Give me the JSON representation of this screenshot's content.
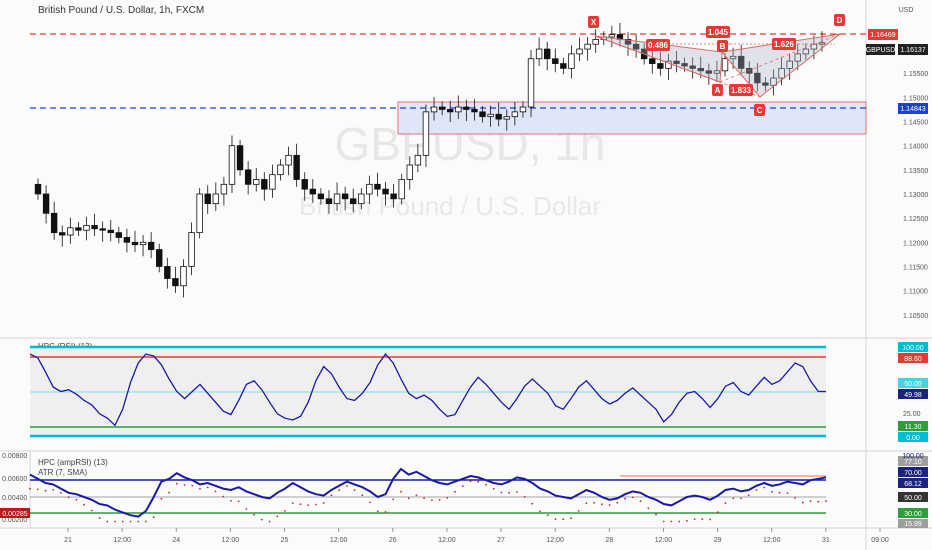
{
  "header": {
    "title": "British Pound / U.S. Dollar, 1h, FXCM",
    "currency": "USD"
  },
  "watermark": {
    "symbol": "GBPUSD, 1h",
    "name": "British Pound / U.S. Dollar"
  },
  "price_axis": {
    "ticks": [
      "1.16000",
      "1.15500",
      "1.15000",
      "1.14500",
      "1.14000",
      "1.13500",
      "1.13000",
      "1.12500",
      "1.12000",
      "1.11500",
      "1.11000",
      "1.10500"
    ],
    "tags": [
      {
        "label": "1.16469",
        "color": "#e53935",
        "price": 1.16469
      },
      {
        "label": "GBPUSD",
        "color": "#222222",
        "price": 1.16137
      },
      {
        "label": "1.16137",
        "color": "#222222",
        "price": 1.16137
      },
      {
        "label": "1.14843",
        "color": "#1e40d6",
        "price": 1.14843
      }
    ]
  },
  "rsi_pane": {
    "label": "HPC (RSI) (13)",
    "ticks": [
      "25.00"
    ],
    "tags": [
      {
        "label": "100.00",
        "color": "#00bcd4"
      },
      {
        "label": "88.60",
        "color": "#e53935"
      },
      {
        "label": "50.00",
        "color": "#4dd0e1"
      },
      {
        "label": "49.98",
        "color": "#1a237e"
      },
      {
        "label": "11.30",
        "color": "#2e9e3a"
      },
      {
        "label": "0.00",
        "color": "#00bcd4"
      }
    ],
    "series": [
      92,
      88,
      72,
      55,
      50,
      52,
      47,
      40,
      35,
      25,
      20,
      12,
      30,
      60,
      82,
      92,
      90,
      80,
      64,
      50,
      42,
      50,
      58,
      48,
      38,
      28,
      24,
      40,
      58,
      62,
      52,
      38,
      25,
      20,
      18,
      22,
      38,
      62,
      78,
      70,
      55,
      42,
      40,
      48,
      60,
      80,
      92,
      82,
      64,
      48,
      42,
      46,
      40,
      30,
      22,
      24,
      40,
      55,
      66,
      58,
      48,
      38,
      30,
      42,
      56,
      64,
      56,
      48,
      34,
      30,
      42,
      55,
      62,
      52,
      42,
      36,
      40,
      48,
      54,
      46,
      38,
      30,
      16,
      24,
      38,
      48,
      50,
      42,
      32,
      42,
      56,
      60,
      50,
      46,
      56,
      66,
      58,
      62,
      72,
      82,
      78,
      62,
      50,
      49.98
    ]
  },
  "amp_pane": {
    "label1": "HPC (ampRSI) (13)",
    "label2": "ATR (7, SMA)",
    "left_ticks": [
      "0.00800",
      "0.00600",
      "0.00400",
      "0.00200"
    ],
    "left_tag": {
      "label": "0.00285",
      "color": "#b71c1c"
    },
    "tags": [
      {
        "label": "77.10",
        "color": "#9e9e9e"
      },
      {
        "label": "100.00",
        "color": "#1a237e"
      },
      {
        "label": "70.00",
        "color": "#1a237e"
      },
      {
        "label": "68.12",
        "color": "#1a237e"
      },
      {
        "label": "50.00",
        "color": "#333333"
      },
      {
        "label": "30.00",
        "color": "#2e9e3a"
      },
      {
        "label": "15.99",
        "color": "#9e9e9e"
      }
    ],
    "series": [
      72,
      66,
      60,
      58,
      52,
      46,
      44,
      40,
      36,
      30,
      28,
      22,
      18,
      14,
      12,
      20,
      40,
      62,
      66,
      74,
      68,
      64,
      58,
      60,
      56,
      52,
      50,
      54,
      48,
      44,
      40,
      38,
      46,
      52,
      60,
      54,
      48,
      44,
      42,
      50,
      56,
      62,
      58,
      54,
      48,
      40,
      44,
      66,
      80,
      72,
      76,
      70,
      64,
      60,
      58,
      62,
      66,
      70,
      68,
      64,
      60,
      58,
      62,
      68,
      66,
      60,
      52,
      48,
      42,
      40,
      38,
      44,
      50,
      46,
      40,
      36,
      38,
      44,
      48,
      46,
      40,
      36,
      30,
      28,
      34,
      40,
      42,
      40,
      36,
      42,
      50,
      52,
      48,
      50,
      56,
      60,
      56,
      58,
      62,
      60,
      58,
      64,
      66,
      68.12
    ]
  },
  "time_axis": {
    "labels": [
      "21",
      "12:00",
      "24",
      "12:00",
      "25",
      "12:00",
      "26",
      "12:00",
      "27",
      "12:00",
      "28",
      "12:00",
      "29",
      "12:00",
      "31",
      "09:00"
    ]
  },
  "pattern": {
    "points": [
      {
        "label": "X"
      },
      {
        "label": "A"
      },
      {
        "label": "B"
      },
      {
        "label": "C"
      },
      {
        "label": "D"
      }
    ],
    "ratios": [
      "0.486",
      "1.045",
      "1.833",
      "1.626"
    ]
  },
  "chart_data": {
    "type": "candlestick",
    "title": "British Pound / U.S. Dollar, 1h, FXCM",
    "ylim": [
      1.1035,
      1.1685
    ],
    "levels": [
      {
        "name": "resistance",
        "value": 1.16469,
        "color": "#e53935",
        "style": "dashed"
      },
      {
        "name": "support",
        "value": 1.14843,
        "color": "#1e40d6",
        "style": "dashed"
      }
    ],
    "zone": {
      "from": 1.143,
      "to": 1.15
    },
    "closes": [
      1.13,
      1.126,
      1.122,
      1.1215,
      1.123,
      1.1225,
      1.1235,
      1.1228,
      1.1225,
      1.122,
      1.121,
      1.12,
      1.1195,
      1.12,
      1.1185,
      1.115,
      1.1125,
      1.111,
      1.115,
      1.122,
      1.13,
      1.128,
      1.13,
      1.132,
      1.14,
      1.135,
      1.132,
      1.133,
      1.131,
      1.134,
      1.136,
      1.138,
      1.133,
      1.131,
      1.13,
      1.129,
      1.128,
      1.13,
      1.129,
      1.128,
      1.13,
      1.132,
      1.131,
      1.13,
      1.129,
      1.133,
      1.136,
      1.138,
      1.147,
      1.148,
      1.1475,
      1.147,
      1.148,
      1.1475,
      1.147,
      1.146,
      1.1465,
      1.1455,
      1.146,
      1.147,
      1.148,
      1.158,
      1.16,
      1.158,
      1.157,
      1.156,
      1.159,
      1.16,
      1.161,
      1.162,
      1.1625,
      1.163,
      1.162,
      1.161,
      1.16,
      1.158,
      1.157,
      1.156,
      1.1575,
      1.157,
      1.1565,
      1.156,
      1.1555,
      1.155,
      1.1555,
      1.158,
      1.1585,
      1.156,
      1.155,
      1.153,
      1.1525,
      1.154,
      1.156,
      1.1575,
      1.159,
      1.16,
      1.161,
      1.1613
    ]
  }
}
